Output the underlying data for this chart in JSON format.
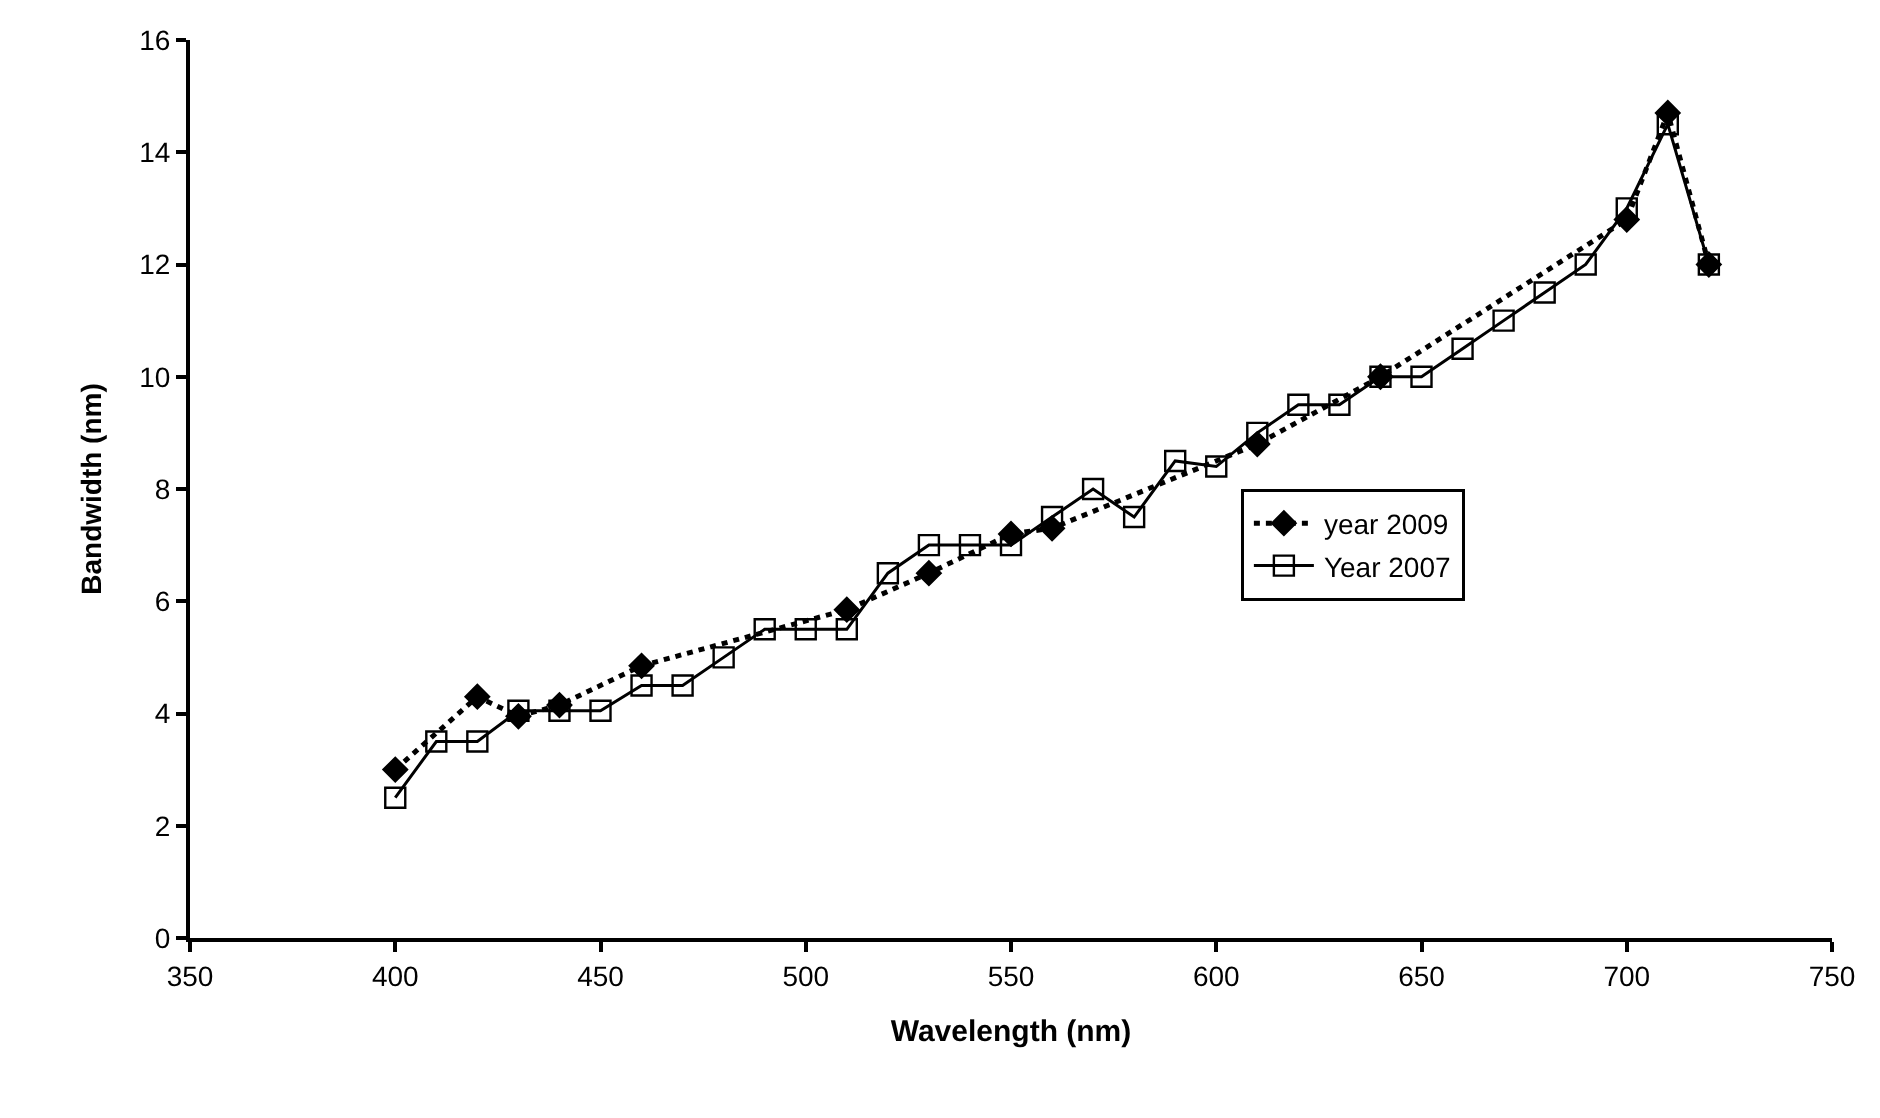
{
  "chart_data": {
    "type": "line",
    "xlabel": "Wavelength (nm)",
    "ylabel": "Bandwidth (nm)",
    "xlim": [
      350,
      750
    ],
    "xticks": [
      350,
      400,
      450,
      500,
      550,
      600,
      650,
      700,
      750
    ],
    "ylim": [
      0,
      16
    ],
    "yticks": [
      0,
      2,
      4,
      6,
      8,
      10,
      12,
      14,
      16
    ],
    "legend": "right",
    "series": [
      {
        "name": "year 2009",
        "color": "#000000",
        "marker": "diamond",
        "line_style": "dotted",
        "x": [
          400,
          420,
          430,
          440,
          460,
          510,
          530,
          550,
          560,
          610,
          640,
          700,
          710,
          720
        ],
        "values": [
          3.0,
          4.3,
          3.95,
          4.15,
          4.85,
          5.85,
          6.5,
          7.2,
          7.3,
          8.8,
          10.0,
          12.8,
          14.7,
          12.0
        ]
      },
      {
        "name": "Year 2007",
        "color": "#000000",
        "marker": "square",
        "line_style": "solid",
        "x": [
          400,
          410,
          420,
          430,
          440,
          450,
          460,
          470,
          480,
          490,
          500,
          510,
          520,
          530,
          540,
          550,
          560,
          570,
          580,
          590,
          600,
          610,
          620,
          630,
          640,
          650,
          660,
          670,
          680,
          690,
          700,
          710,
          720
        ],
        "values": [
          2.5,
          3.5,
          3.5,
          4.05,
          4.05,
          4.05,
          4.5,
          4.5,
          5.0,
          5.5,
          5.5,
          5.5,
          6.5,
          7.0,
          7.0,
          7.0,
          7.5,
          8.0,
          7.5,
          8.5,
          8.4,
          9.0,
          9.5,
          9.5,
          10.0,
          10.0,
          10.5,
          11.0,
          11.5,
          12.0,
          13.0,
          14.5,
          12.0
        ]
      }
    ]
  }
}
